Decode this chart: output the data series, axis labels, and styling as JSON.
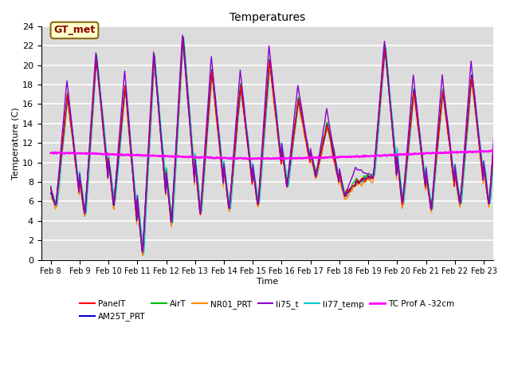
{
  "title": "Temperatures",
  "xlabel": "Time",
  "ylabel": "Temperature (C)",
  "ylim": [
    0,
    24
  ],
  "xlim_days": [
    7.67,
    23.33
  ],
  "annotation_text": "GT_met",
  "annotation_color": "#8B0000",
  "annotation_bg": "#FFFFCC",
  "annotation_border": "#8B6914",
  "background_color": "#DCDCDC",
  "grid_color": "#FFFFFF",
  "series_colors": {
    "PanelT": "#FF0000",
    "AM25T_PRT": "#0000CC",
    "AirT": "#00BB00",
    "NR01_PRT": "#FF8800",
    "li75_t": "#8800CC",
    "li77_temp": "#00CCCC",
    "TC Prof A -32cm": "#FF00FF"
  },
  "series_linewidths": {
    "PanelT": 1.0,
    "AM25T_PRT": 1.0,
    "AirT": 1.0,
    "NR01_PRT": 1.0,
    "li75_t": 1.0,
    "li77_temp": 1.0,
    "TC Prof A -32cm": 1.8
  },
  "xtick_labels": [
    "Feb 8",
    "Feb 9",
    "Feb 10",
    "Feb 11",
    "Feb 12",
    "Feb 13",
    "Feb 14",
    "Feb 15",
    "Feb 16",
    "Feb 17",
    "Feb 18",
    "Feb 19",
    "Feb 20",
    "Feb 21",
    "Feb 22",
    "Feb 23"
  ],
  "xtick_positions": [
    8,
    9,
    10,
    11,
    12,
    13,
    14,
    15,
    16,
    17,
    18,
    19,
    20,
    21,
    22,
    23
  ],
  "ytick_labels": [
    "0",
    "2",
    "4",
    "6",
    "8",
    "10",
    "12",
    "14",
    "16",
    "18",
    "20",
    "22",
    "24"
  ],
  "ytick_positions": [
    0,
    2,
    4,
    6,
    8,
    10,
    12,
    14,
    16,
    18,
    20,
    22,
    24
  ],
  "figsize": [
    6.4,
    4.8
  ],
  "dpi": 100
}
